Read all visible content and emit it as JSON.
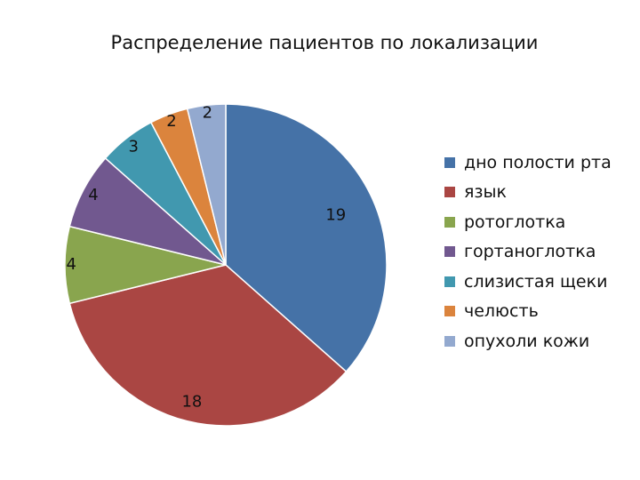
{
  "chart_data": {
    "type": "pie",
    "title": "Распределение пациентов по локализации",
    "categories": [
      "дно полости рта",
      "язык",
      "ротоглотка",
      "гортаноглотка",
      "слизистая щеки",
      "челюсть",
      "опухоли кожи"
    ],
    "values": [
      19,
      18,
      4,
      4,
      3,
      2,
      2
    ],
    "colors": [
      "#4572A7",
      "#AA4643",
      "#89A54E",
      "#71588F",
      "#4198AF",
      "#DB843D",
      "#93A9CF"
    ],
    "data_labels": [
      "19",
      "18",
      "4",
      "4",
      "3",
      "2",
      "2"
    ],
    "legend_position": "right",
    "start_angle": "12 o'clock",
    "direction": "clockwise"
  }
}
